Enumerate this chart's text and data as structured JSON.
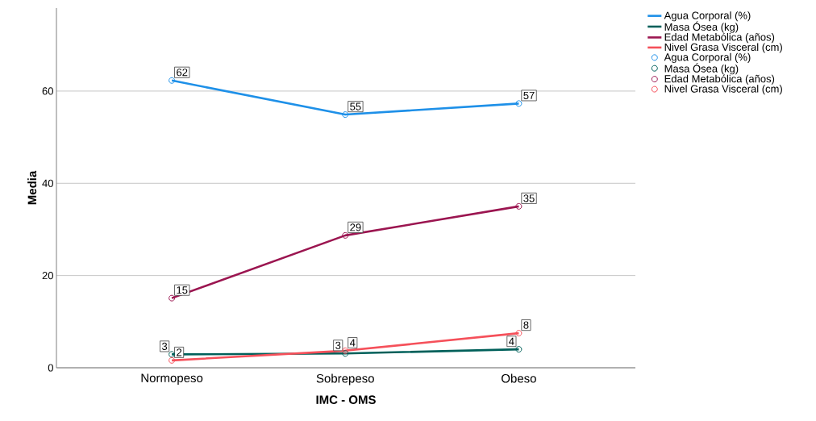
{
  "chart_data": {
    "type": "line",
    "xlabel": "IMC - OMS",
    "ylabel": "Media",
    "categories": [
      "Normopeso",
      "Sobrepeso",
      "Obeso"
    ],
    "series": [
      {
        "name": "Agua Corporal (%)",
        "type": "line",
        "color": "#1e90e8",
        "marker": "none",
        "values": [
          62.3,
          54.9,
          57.3
        ]
      },
      {
        "name": "Masa Ósea (kg)",
        "type": "line",
        "color": "#00605a",
        "marker": "none",
        "values": [
          2.9,
          3.1,
          4.0
        ]
      },
      {
        "name": "Edad Metabólica (años)",
        "type": "line",
        "color": "#9b1550",
        "marker": "none",
        "values": [
          15.1,
          28.7,
          35.0
        ]
      },
      {
        "name": "Nivel Grasa Visceral (cm)",
        "type": "line",
        "color": "#f5505a",
        "marker": "none",
        "values": [
          1.6,
          3.7,
          7.5
        ]
      },
      {
        "name": "Agua Corporal (%)",
        "type": "scatter",
        "color": "#1e90e8",
        "marker": "circle",
        "values": [
          62.3,
          54.9,
          57.3
        ],
        "value_labels": [
          "62",
          "55",
          "57"
        ]
      },
      {
        "name": "Masa Ósea (kg)",
        "type": "scatter",
        "color": "#00605a",
        "marker": "circle",
        "values": [
          2.9,
          3.1,
          4.0
        ],
        "value_labels": [
          "3",
          "3",
          "4"
        ]
      },
      {
        "name": "Edad Metabólica (años)",
        "type": "scatter",
        "color": "#9b1550",
        "marker": "circle",
        "values": [
          15.1,
          28.7,
          35.0
        ],
        "value_labels": [
          "15",
          "29",
          "35"
        ]
      },
      {
        "name": "Nivel Grasa Visceral (cm)",
        "type": "scatter",
        "color": "#f5505a",
        "marker": "circle",
        "values": [
          1.6,
          3.7,
          7.5
        ],
        "value_labels": [
          "2",
          "4",
          "8"
        ]
      }
    ],
    "ylim": [
      0,
      78
    ],
    "yticks": [
      0,
      20,
      40,
      60
    ],
    "grid": "y",
    "legend": "top right"
  }
}
